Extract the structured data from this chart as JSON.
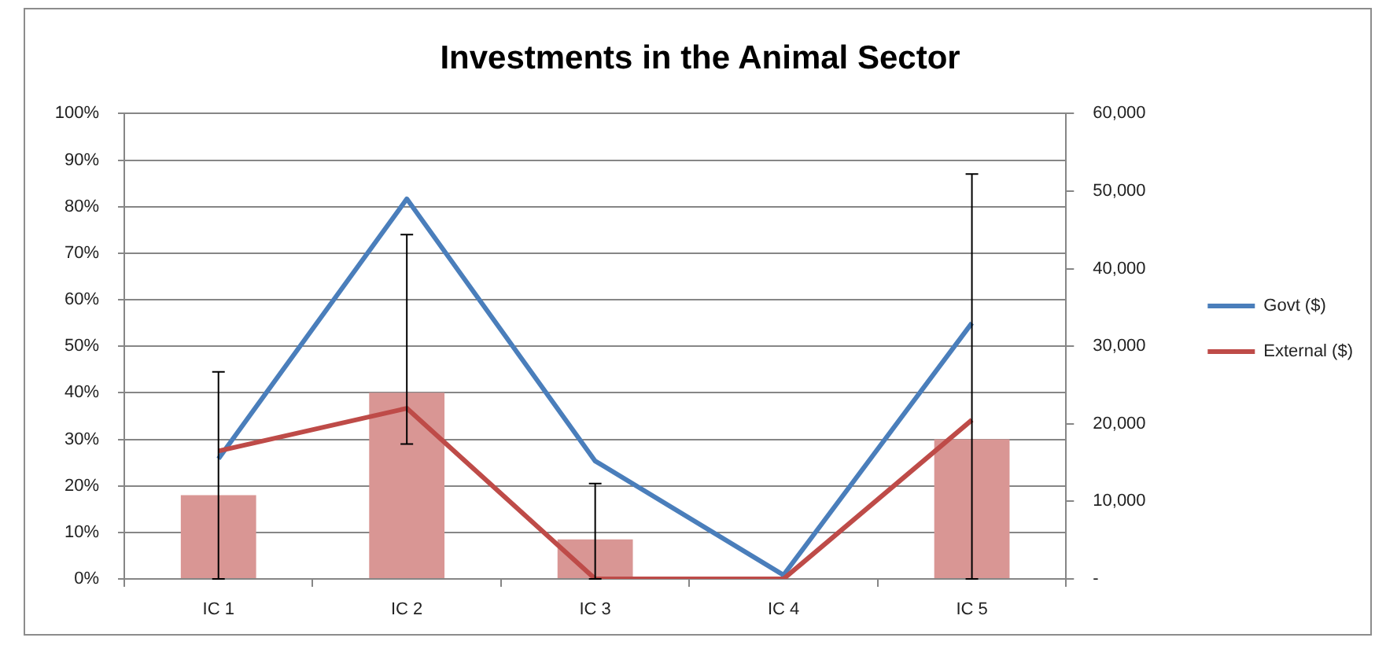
{
  "chart_data": {
    "type": "bar",
    "title": "Investments in the Animal Sector",
    "categories": [
      "IC 1",
      "IC 2",
      "IC 3",
      "IC 4",
      "IC 5"
    ],
    "series": [
      {
        "color": "#d99694",
        "values": [
          18,
          40,
          8.5,
          0,
          30
        ],
        "errors": [
          [
            0,
            44.5
          ],
          [
            29,
            74
          ],
          [
            0,
            20.5
          ],
          null,
          [
            0,
            87
          ]
        ]
      },
      {
        "name": "Govt ($)",
        "type": "line",
        "axis": "y2",
        "color": "#4a7ebb",
        "values": [
          15500,
          49000,
          15200,
          500,
          33000
        ]
      },
      {
        "name": "External ($)",
        "type": "line",
        "axis": "y2",
        "color": "#be4b48",
        "values": [
          16500,
          22000,
          0,
          0,
          20500
        ]
      }
    ],
    "ylim": [
      0,
      100
    ],
    "yticks": [
      {
        "value": 0,
        "label": "0%"
      },
      {
        "value": 10,
        "label": "10%"
      },
      {
        "value": 20,
        "label": "20%"
      },
      {
        "value": 30,
        "label": "30%"
      },
      {
        "value": 40,
        "label": "40%"
      },
      {
        "value": 50,
        "label": "50%"
      },
      {
        "value": 60,
        "label": "60%"
      },
      {
        "value": 70,
        "label": "70%"
      },
      {
        "value": 80,
        "label": "80%"
      },
      {
        "value": 90,
        "label": "90%"
      },
      {
        "value": 100,
        "label": "100%"
      }
    ],
    "y2lim": [
      0,
      60000
    ],
    "y2ticks": [
      {
        "value": 0,
        "label": "-"
      },
      {
        "value": 10000,
        "label": "10,000"
      },
      {
        "value": 20000,
        "label": "20,000"
      },
      {
        "value": 30000,
        "label": "30,000"
      },
      {
        "value": 40000,
        "label": "40,000"
      },
      {
        "value": 50000,
        "label": "50,000"
      },
      {
        "value": 60000,
        "label": "60,000"
      }
    ],
    "grid": "y",
    "legend": "right"
  }
}
